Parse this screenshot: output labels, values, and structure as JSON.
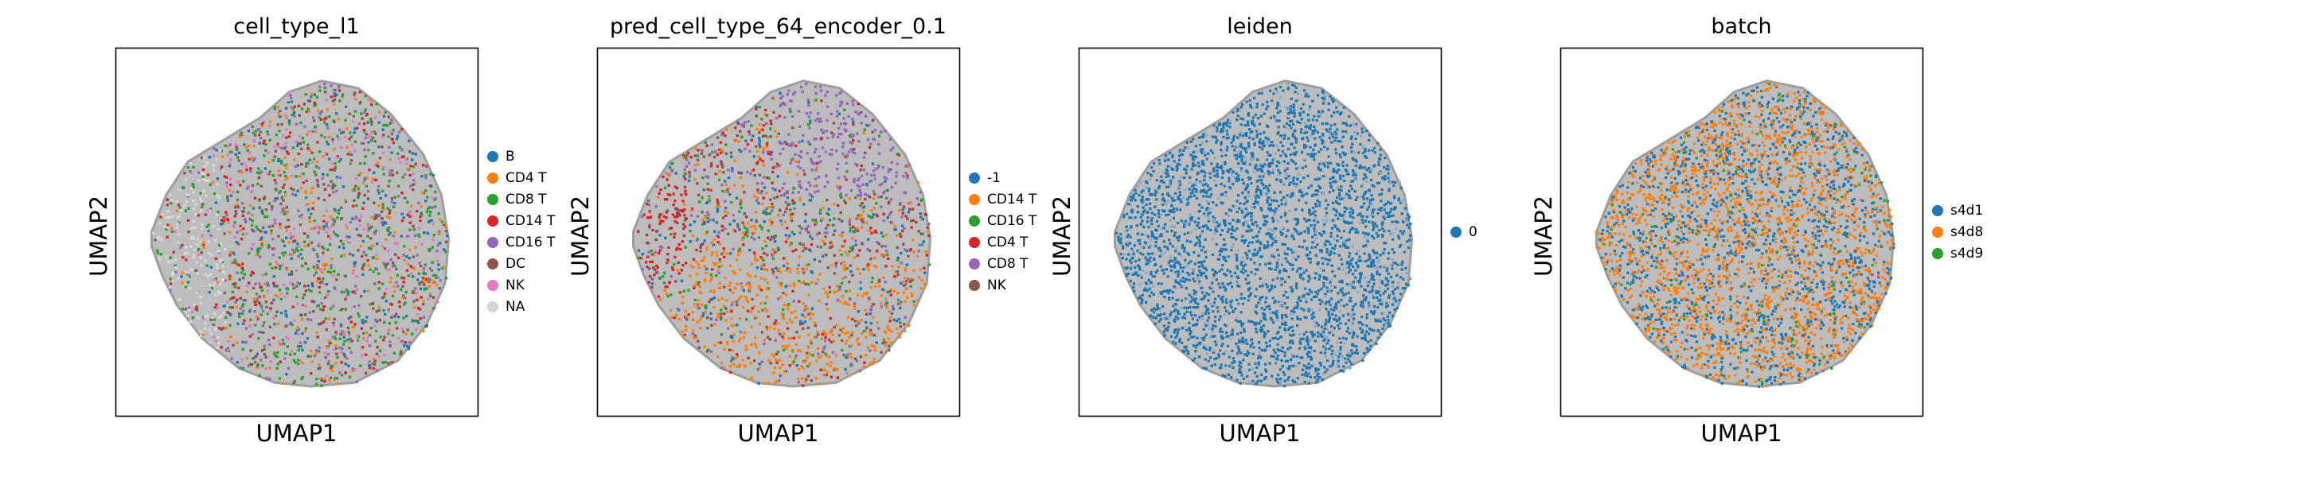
{
  "chart_data": [
    {
      "type": "scatter",
      "title": "cell_type_l1",
      "xlabel": "UMAP1",
      "ylabel": "UMAP2",
      "grid": false,
      "legend_position": "right",
      "categories": [
        "B",
        "CD4 T",
        "CD8 T",
        "CD14 T",
        "CD16 T",
        "DC",
        "NK",
        "NA"
      ],
      "colors": [
        "#1f77b4",
        "#ff7f0e",
        "#2ca02c",
        "#d62728",
        "#9467bd",
        "#8c564b",
        "#e377c2",
        "#d3d3d3"
      ],
      "dominant": [
        "#2ca02c",
        "#d62728",
        "#9467bd"
      ]
    },
    {
      "type": "scatter",
      "title": "pred_cell_type_64_encoder_0.1",
      "xlabel": "UMAP1",
      "ylabel": "UMAP2",
      "grid": false,
      "legend_position": "right",
      "categories": [
        "-1",
        "CD14 T",
        "CD16 T",
        "CD4 T",
        "CD8 T",
        "NK"
      ],
      "colors": [
        "#1f77b4",
        "#ff7f0e",
        "#2ca02c",
        "#d62728",
        "#9467bd",
        "#8c564b"
      ],
      "dominant": [
        "#9467bd",
        "#1f77b4",
        "#ff7f0e"
      ]
    },
    {
      "type": "scatter",
      "title": "leiden",
      "xlabel": "UMAP1",
      "ylabel": "UMAP2",
      "grid": false,
      "legend_position": "right",
      "categories": [
        "0"
      ],
      "colors": [
        "#1f77b4"
      ],
      "dominant": [
        "#1f77b4"
      ]
    },
    {
      "type": "scatter",
      "title": "batch",
      "xlabel": "UMAP1",
      "ylabel": "UMAP2",
      "grid": false,
      "legend_position": "right",
      "categories": [
        "s4d1",
        "s4d8",
        "s4d9"
      ],
      "colors": [
        "#1f77b4",
        "#ff7f0e",
        "#2ca02c"
      ],
      "dominant": [
        "#ff7f0e",
        "#1f77b4"
      ]
    }
  ]
}
